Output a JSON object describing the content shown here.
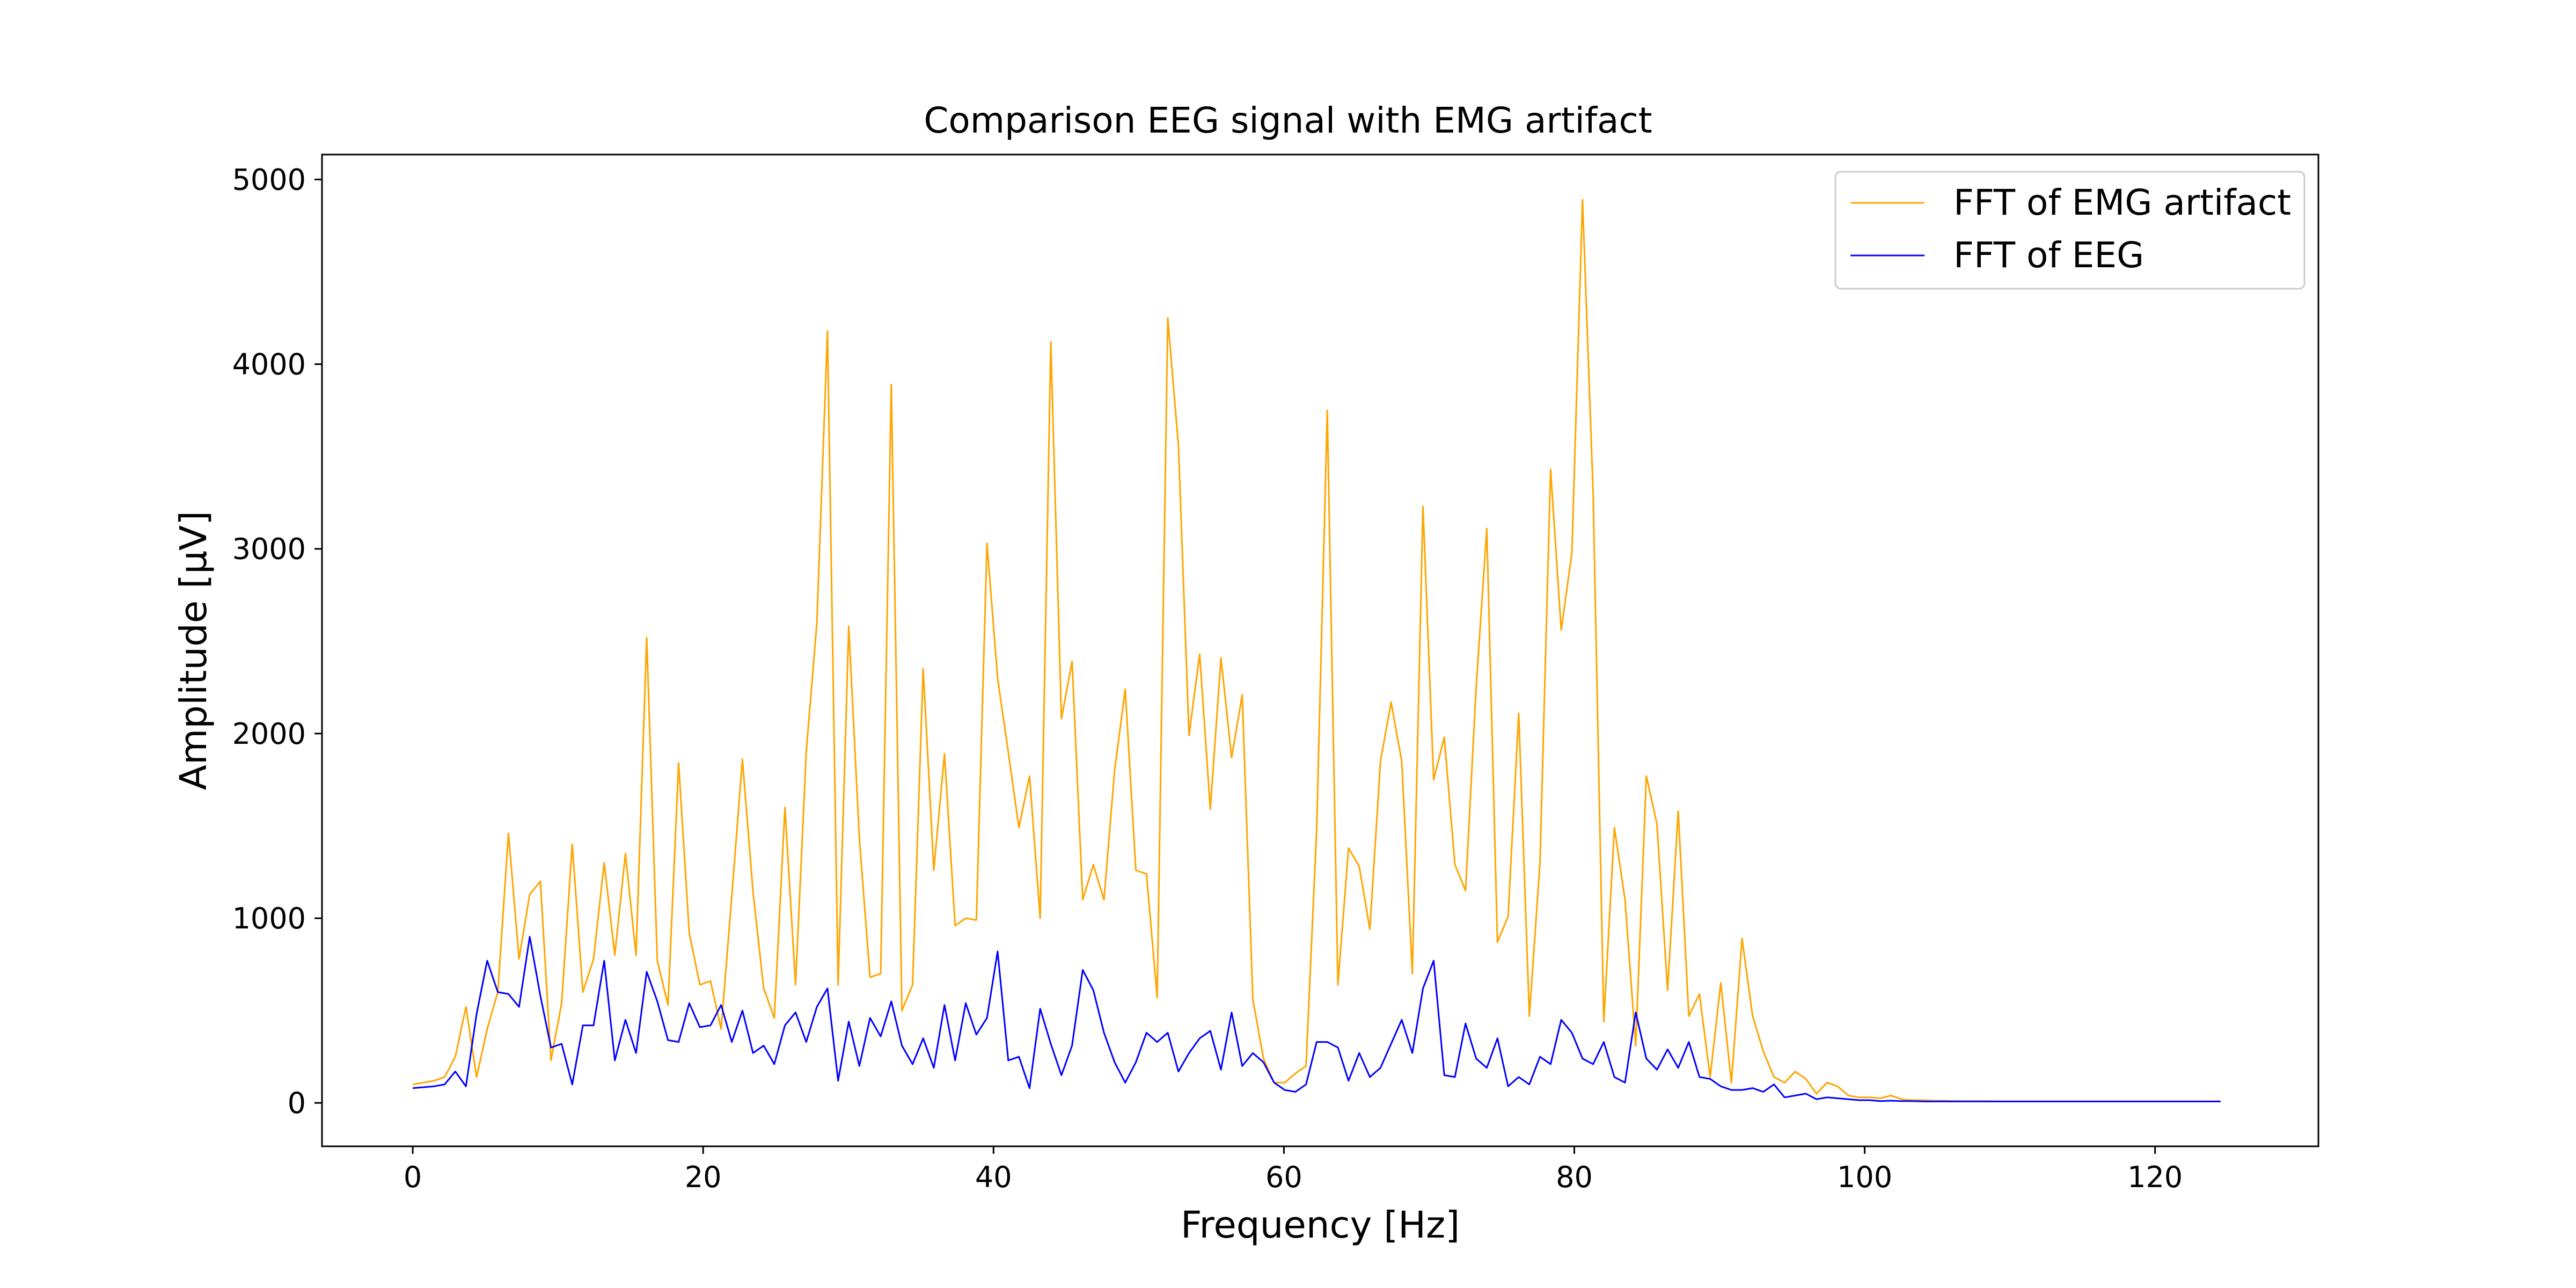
{
  "chart_data": {
    "type": "line",
    "title": "Comparison EEG signal with EMG artifact",
    "xlabel": "Frequency [Hz]",
    "ylabel": "Amplitude [μV]",
    "xlim": [
      -6.25,
      131.25
    ],
    "ylim": [
      -235,
      5135
    ],
    "xticks": [
      0,
      20,
      40,
      60,
      80,
      100,
      120
    ],
    "yticks": [
      0,
      1000,
      2000,
      3000,
      4000,
      5000
    ],
    "grid": false,
    "legend_position": "top-right",
    "x": {
      "start": 0,
      "step": 0.732421875,
      "count": 171
    },
    "series": [
      {
        "name": "FFT of EMG artifact",
        "color": "#FFA500",
        "values": [
          100,
          110,
          120,
          140,
          250,
          520,
          140,
          400,
          600,
          1460,
          780,
          1130,
          1200,
          230,
          540,
          1400,
          600,
          780,
          1300,
          800,
          1350,
          800,
          2520,
          770,
          530,
          1840,
          920,
          640,
          660,
          400,
          1120,
          1860,
          1140,
          620,
          460,
          1600,
          640,
          1900,
          2600,
          4180,
          640,
          2580,
          1430,
          680,
          700,
          3890,
          500,
          640,
          2350,
          1260,
          1890,
          960,
          1000,
          990,
          3030,
          2300,
          1900,
          1490,
          1770,
          1000,
          4120,
          2080,
          2390,
          1100,
          1290,
          1100,
          1800,
          2240,
          1260,
          1240,
          570,
          4250,
          3560,
          1990,
          2430,
          1590,
          2410,
          1870,
          2210,
          560,
          240,
          110,
          110,
          160,
          200,
          1480,
          3750,
          640,
          1380,
          1280,
          940,
          1850,
          2170,
          1850,
          700,
          3230,
          1750,
          1980,
          1290,
          1150,
          2250,
          3110,
          870,
          1010,
          2110,
          470,
          1300,
          3430,
          2560,
          2980,
          4890,
          3300,
          440,
          1490,
          1100,
          310,
          1770,
          1510,
          610,
          1580,
          470,
          590,
          140,
          650,
          110,
          890,
          470,
          280,
          140,
          110,
          170,
          130,
          50,
          110,
          90,
          40,
          30,
          30,
          25,
          40,
          20,
          15,
          15,
          12,
          12,
          10,
          10,
          10,
          10,
          8,
          8,
          8,
          8,
          8,
          8,
          8,
          8,
          8,
          8,
          8,
          8,
          8,
          8,
          8,
          8,
          8,
          8,
          8,
          8,
          8,
          8,
          8,
          8,
          8,
          8
        ]
      },
      {
        "name": "FFT of EEG",
        "color": "#0000FF",
        "values": [
          80,
          85,
          90,
          100,
          170,
          90,
          480,
          770,
          600,
          590,
          520,
          900,
          580,
          300,
          320,
          100,
          420,
          420,
          770,
          230,
          450,
          270,
          710,
          550,
          340,
          330,
          540,
          410,
          420,
          530,
          330,
          500,
          270,
          310,
          210,
          420,
          490,
          330,
          520,
          620,
          120,
          440,
          200,
          460,
          360,
          550,
          310,
          210,
          350,
          190,
          530,
          230,
          540,
          370,
          460,
          820,
          230,
          250,
          80,
          510,
          320,
          150,
          310,
          720,
          610,
          380,
          220,
          110,
          220,
          380,
          330,
          380,
          170,
          270,
          350,
          390,
          180,
          490,
          200,
          270,
          220,
          110,
          70,
          60,
          100,
          330,
          330,
          300,
          120,
          270,
          140,
          190,
          320,
          450,
          270,
          620,
          770,
          150,
          140,
          430,
          240,
          190,
          350,
          90,
          140,
          100,
          250,
          210,
          450,
          380,
          240,
          210,
          330,
          140,
          110,
          490,
          240,
          180,
          290,
          190,
          330,
          140,
          130,
          90,
          70,
          70,
          80,
          60,
          100,
          30,
          40,
          50,
          20,
          30,
          25,
          20,
          15,
          15,
          10,
          12,
          10,
          10,
          8,
          8,
          8,
          8,
          8,
          8,
          8,
          8,
          8,
          8,
          8,
          8,
          8,
          8,
          8,
          8,
          8,
          8,
          8,
          8,
          8,
          8,
          8,
          8,
          8,
          8,
          8,
          8,
          8
        ]
      }
    ]
  }
}
